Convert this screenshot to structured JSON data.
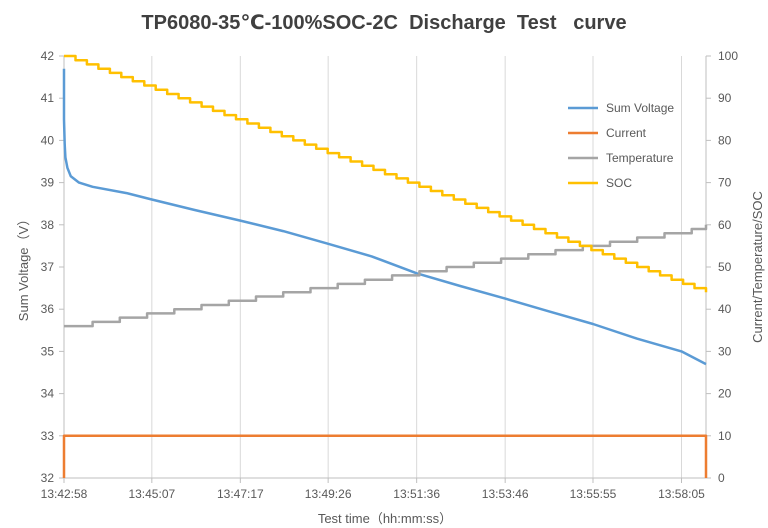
{
  "chart_data": {
    "type": "line",
    "title": "TP6080-35℃-100%SOC-2C  Discharge  Test   curve",
    "xlabel": "Test time（hh:mm:ss）",
    "ylabel_left": "Sum Voltage（V）",
    "ylabel_right": "Current/Temperature/SOC",
    "x_tick_labels": [
      "13:42:58",
      "13:45:07",
      "13:47:17",
      "13:49:26",
      "13:51:36",
      "13:53:46",
      "13:55:55",
      "13:58:05"
    ],
    "x_range": [
      "13:42:58",
      "13:58:41"
    ],
    "ylim_left": [
      32,
      42
    ],
    "ylim_right": [
      0,
      100
    ],
    "y_left_ticks": [
      32,
      33,
      34,
      35,
      36,
      37,
      38,
      39,
      40,
      41,
      42
    ],
    "y_right_ticks": [
      0,
      10,
      20,
      30,
      40,
      50,
      60,
      70,
      80,
      90,
      100
    ],
    "grid": "vertical",
    "legend_position": "top-right",
    "series": [
      {
        "name": "Sum Voltage",
        "axis": "left",
        "color": "#5B9BD5",
        "x": [
          "13:42:58",
          "13:42:58",
          "13:42:59",
          "13:43:00",
          "13:43:03",
          "13:43:08",
          "13:43:20",
          "13:43:40",
          "13:44:30",
          "13:45:07",
          "13:46:10",
          "13:47:17",
          "13:48:20",
          "13:49:26",
          "13:50:30",
          "13:51:36",
          "13:52:40",
          "13:53:46",
          "13:54:50",
          "13:55:55",
          "13:57:00",
          "13:58:05",
          "13:58:41"
        ],
        "values": [
          41.7,
          40.5,
          39.9,
          39.6,
          39.35,
          39.15,
          39.0,
          38.9,
          38.75,
          38.6,
          38.35,
          38.1,
          37.85,
          37.55,
          37.25,
          36.85,
          36.55,
          36.25,
          35.95,
          35.65,
          35.3,
          35.0,
          34.7
        ]
      },
      {
        "name": "Current",
        "axis": "right",
        "color": "#ED7D31",
        "x": [
          "13:42:58",
          "13:42:58",
          "13:58:41",
          "13:58:41"
        ],
        "values": [
          0,
          10,
          10,
          0
        ]
      },
      {
        "name": "Temperature",
        "axis": "right",
        "color": "#A5A5A5",
        "step": true,
        "x": [
          "13:42:58",
          "13:43:40",
          "13:44:20",
          "13:45:00",
          "13:45:40",
          "13:46:20",
          "13:47:00",
          "13:47:40",
          "13:48:20",
          "13:49:00",
          "13:49:40",
          "13:50:20",
          "13:51:00",
          "13:51:40",
          "13:52:20",
          "13:53:00",
          "13:53:40",
          "13:54:20",
          "13:55:00",
          "13:55:40",
          "13:56:20",
          "13:57:00",
          "13:57:40",
          "13:58:20",
          "13:58:41"
        ],
        "values": [
          36,
          37,
          38,
          39,
          40,
          41,
          42,
          43,
          44,
          45,
          46,
          47,
          48,
          49,
          50,
          51,
          52,
          53,
          54,
          55,
          56,
          57,
          58,
          59,
          60
        ]
      },
      {
        "name": "SOC",
        "axis": "right",
        "color": "#FFC000",
        "step": true,
        "x": [
          "13:42:58",
          "13:58:41"
        ],
        "values": [
          100,
          44
        ]
      }
    ]
  }
}
